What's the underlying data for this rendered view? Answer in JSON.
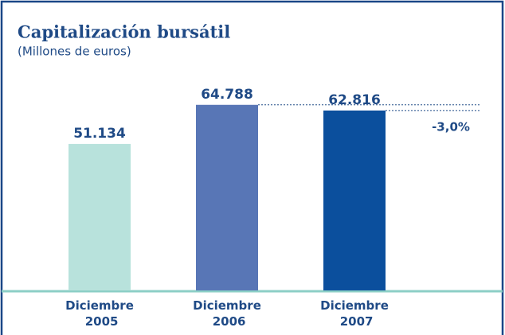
{
  "chart_data": {
    "type": "bar",
    "title": "Capitalización bursátil",
    "subtitle": "(Millones de euros)",
    "categories": [
      "Diciembre 2005",
      "Diciembre 2006",
      "Diciembre 2007"
    ],
    "values": [
      51134,
      64788,
      62816
    ],
    "value_labels": [
      "51.134",
      "64.788",
      "62.816"
    ],
    "colors": [
      "#b8e2dc",
      "#5876b6",
      "#0b4f9d"
    ],
    "ylim": [
      0,
      100000
    ],
    "annotation": "-3,0%"
  }
}
